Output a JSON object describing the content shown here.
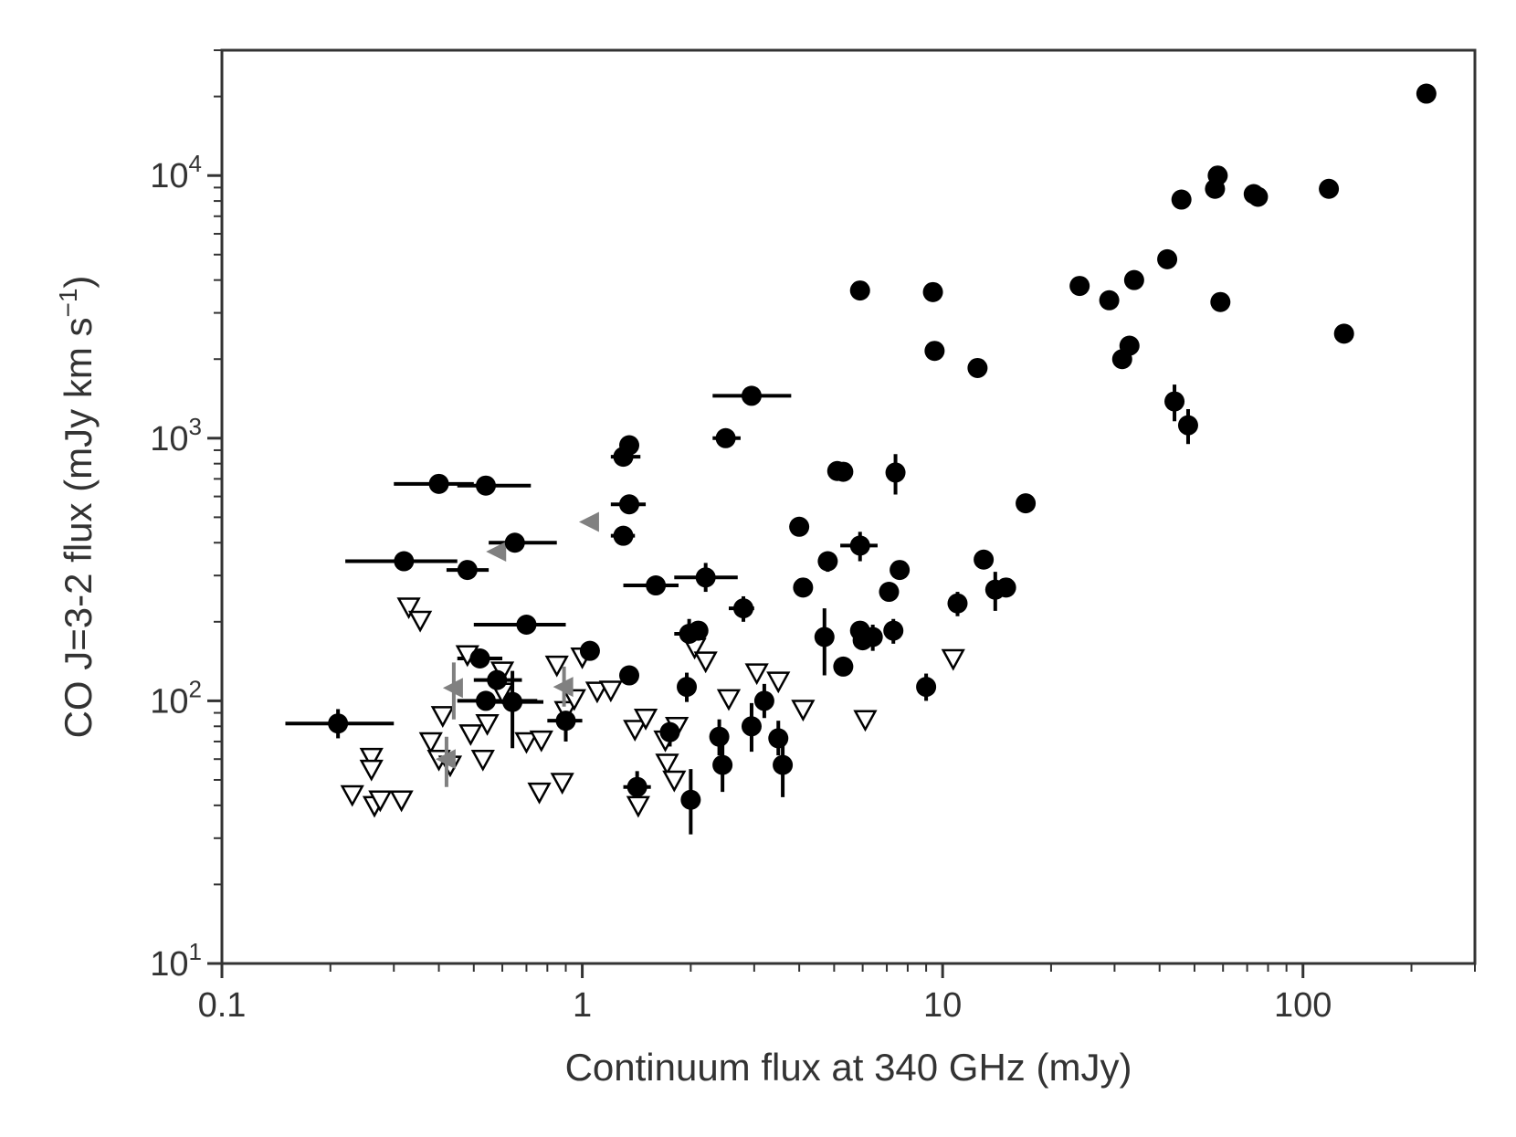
{
  "chart_data": {
    "type": "scatter",
    "title": "",
    "xlabel": "Continuum flux at 340 GHz  (mJy)",
    "ylabel": "CO J=3-2 flux  (mJy km s",
    "ylabel_sup": "−1",
    "ylabel_close": ")",
    "xscale": "log",
    "yscale": "log",
    "xlim": [
      0.1,
      300
    ],
    "ylim": [
      10,
      30000
    ],
    "x_ticks": [
      {
        "value": 0.1,
        "label": "0.1"
      },
      {
        "value": 1,
        "label": "1"
      },
      {
        "value": 10,
        "label": "10"
      },
      {
        "value": 100,
        "label": "100"
      }
    ],
    "y_ticks": [
      {
        "value": 10,
        "base": "10",
        "exp": "1"
      },
      {
        "value": 100,
        "base": "10",
        "exp": "2"
      },
      {
        "value": 1000,
        "base": "10",
        "exp": "3"
      },
      {
        "value": 10000,
        "base": "10",
        "exp": "4"
      }
    ],
    "grid": false,
    "colors": {
      "detection": "#000000",
      "upper_limit": "#000000",
      "continuum_limit": "#808080",
      "axes": "#333333"
    },
    "series": [
      {
        "marker": "filled-circle",
        "points": [
          {
            "x": 0.21,
            "y": 82,
            "xerr": [
              0.15,
              0.3
            ],
            "yerr": [
              72,
              93
            ]
          },
          {
            "x": 0.32,
            "y": 340,
            "xerr": [
              0.22,
              0.45
            ],
            "yerr": null
          },
          {
            "x": 0.4,
            "y": 670,
            "xerr": [
              0.3,
              0.5
            ],
            "yerr": null
          },
          {
            "x": 0.48,
            "y": 315,
            "xerr": [
              0.42,
              0.55
            ],
            "yerr": null
          },
          {
            "x": 0.54,
            "y": 660,
            "xerr": [
              0.45,
              0.72
            ],
            "yerr": null
          },
          {
            "x": 0.65,
            "y": 400,
            "xerr": [
              0.55,
              0.85
            ],
            "yerr": null
          },
          {
            "x": 0.7,
            "y": 195,
            "xerr": [
              0.5,
              0.9
            ],
            "yerr": null
          },
          {
            "x": 0.52,
            "y": 145,
            "xerr": [
              0.45,
              0.6
            ],
            "yerr": null
          },
          {
            "x": 0.58,
            "y": 120,
            "xerr": [
              0.5,
              0.68
            ],
            "yerr": null
          },
          {
            "x": 0.54,
            "y": 100,
            "xerr": [
              0.45,
              0.75
            ],
            "yerr": null
          },
          {
            "x": 0.64,
            "y": 99,
            "xerr": [
              0.55,
              0.78
            ],
            "yerr": [
              66,
              130
            ]
          },
          {
            "x": 0.9,
            "y": 84,
            "xerr": [
              0.8,
              1.0
            ],
            "yerr": [
              70,
              98
            ]
          },
          {
            "x": 1.05,
            "y": 155,
            "xerr": null,
            "yerr": null
          },
          {
            "x": 1.3,
            "y": 850,
            "xerr": [
              1.2,
              1.45
            ],
            "yerr": null
          },
          {
            "x": 1.35,
            "y": 940,
            "xerr": null,
            "yerr": null
          },
          {
            "x": 1.35,
            "y": 560,
            "xerr": [
              1.2,
              1.5
            ],
            "yerr": null
          },
          {
            "x": 1.3,
            "y": 425,
            "xerr": [
              1.2,
              1.4
            ],
            "yerr": null
          },
          {
            "x": 1.35,
            "y": 125,
            "xerr": [
              1.28,
              1.4
            ],
            "yerr": null
          },
          {
            "x": 1.6,
            "y": 275,
            "xerr": [
              1.3,
              1.85
            ],
            "yerr": null
          },
          {
            "x": 1.42,
            "y": 47,
            "xerr": [
              1.3,
              1.55
            ],
            "yerr": [
              41,
              54
            ]
          },
          {
            "x": 1.75,
            "y": 76,
            "xerr": [
              1.65,
              1.85
            ],
            "yerr": [
              67,
              86
            ]
          },
          {
            "x": 1.95,
            "y": 113,
            "xerr": null,
            "yerr": [
              99,
              128
            ]
          },
          {
            "x": 1.98,
            "y": 180,
            "xerr": [
              1.8,
              2.1
            ],
            "yerr": [
              162,
              205
            ]
          },
          {
            "x": 2.1,
            "y": 185,
            "xerr": [
              1.95,
              2.2
            ],
            "yerr": null
          },
          {
            "x": 2.2,
            "y": 295,
            "xerr": [
              1.8,
              2.7
            ],
            "yerr": [
              260,
              335
            ]
          },
          {
            "x": 2.0,
            "y": 42,
            "xerr": null,
            "yerr": [
              31,
              55
            ]
          },
          {
            "x": 2.4,
            "y": 73,
            "xerr": null,
            "yerr": [
              62,
              85
            ]
          },
          {
            "x": 2.45,
            "y": 57,
            "xerr": null,
            "yerr": [
              45,
              70
            ]
          },
          {
            "x": 2.5,
            "y": 1000,
            "xerr": [
              2.3,
              2.75
            ],
            "yerr": null
          },
          {
            "x": 2.8,
            "y": 225,
            "xerr": [
              2.55,
              3.0
            ],
            "yerr": [
              200,
              250
            ]
          },
          {
            "x": 2.95,
            "y": 1450,
            "xerr": [
              2.3,
              3.8
            ],
            "yerr": null
          },
          {
            "x": 2.95,
            "y": 80,
            "xerr": null,
            "yerr": [
              64,
              98
            ]
          },
          {
            "x": 3.2,
            "y": 100,
            "xerr": null,
            "yerr": [
              86,
              116
            ]
          },
          {
            "x": 3.5,
            "y": 72,
            "xerr": null,
            "yerr": [
              62,
              84
            ]
          },
          {
            "x": 3.6,
            "y": 57,
            "xerr": null,
            "yerr": [
              43,
              72
            ]
          },
          {
            "x": 4.0,
            "y": 460,
            "xerr": null,
            "yerr": null
          },
          {
            "x": 4.1,
            "y": 270,
            "xerr": null,
            "yerr": null
          },
          {
            "x": 4.8,
            "y": 340,
            "xerr": null,
            "yerr": [
              310,
              370
            ]
          },
          {
            "x": 4.7,
            "y": 175,
            "xerr": null,
            "yerr": [
              125,
              225
            ]
          },
          {
            "x": 5.1,
            "y": 750,
            "xerr": null,
            "yerr": null
          },
          {
            "x": 5.3,
            "y": 745,
            "xerr": null,
            "yerr": null
          },
          {
            "x": 5.3,
            "y": 135,
            "xerr": null,
            "yerr": null
          },
          {
            "x": 5.9,
            "y": 3650,
            "xerr": null,
            "yerr": null
          },
          {
            "x": 5.9,
            "y": 390,
            "xerr": [
              5.2,
              6.6
            ],
            "yerr": [
              340,
              440
            ]
          },
          {
            "x": 5.9,
            "y": 185,
            "xerr": null,
            "yerr": null
          },
          {
            "x": 6.0,
            "y": 170,
            "xerr": null,
            "yerr": null
          },
          {
            "x": 6.4,
            "y": 175,
            "xerr": null,
            "yerr": [
              155,
              195
            ]
          },
          {
            "x": 7.1,
            "y": 260,
            "xerr": null,
            "yerr": null
          },
          {
            "x": 7.3,
            "y": 185,
            "xerr": null,
            "yerr": [
              165,
              205
            ]
          },
          {
            "x": 7.4,
            "y": 740,
            "xerr": null,
            "yerr": [
              610,
              870
            ]
          },
          {
            "x": 7.6,
            "y": 315,
            "xerr": null,
            "yerr": null
          },
          {
            "x": 9.0,
            "y": 113,
            "xerr": null,
            "yerr": [
              100,
              127
            ]
          },
          {
            "x": 9.4,
            "y": 3600,
            "xerr": null,
            "yerr": null
          },
          {
            "x": 9.5,
            "y": 2150,
            "xerr": null,
            "yerr": null
          },
          {
            "x": 11,
            "y": 235,
            "xerr": null,
            "yerr": [
              210,
              260
            ]
          },
          {
            "x": 12.5,
            "y": 1850,
            "xerr": null,
            "yerr": null
          },
          {
            "x": 13,
            "y": 345,
            "xerr": null,
            "yerr": null
          },
          {
            "x": 14,
            "y": 265,
            "xerr": null,
            "yerr": [
              220,
              310
            ]
          },
          {
            "x": 15,
            "y": 270,
            "xerr": null,
            "yerr": null
          },
          {
            "x": 17,
            "y": 565,
            "xerr": null,
            "yerr": null
          },
          {
            "x": 24,
            "y": 3800,
            "xerr": null,
            "yerr": null
          },
          {
            "x": 29,
            "y": 3350,
            "xerr": null,
            "yerr": null
          },
          {
            "x": 31.5,
            "y": 2000,
            "xerr": null,
            "yerr": null
          },
          {
            "x": 33,
            "y": 2250,
            "xerr": null,
            "yerr": null
          },
          {
            "x": 34,
            "y": 4000,
            "xerr": null,
            "yerr": null
          },
          {
            "x": 42,
            "y": 4800,
            "xerr": null,
            "yerr": null
          },
          {
            "x": 44,
            "y": 1380,
            "xerr": null,
            "yerr": [
              1160,
              1600
            ]
          },
          {
            "x": 46,
            "y": 8100,
            "xerr": null,
            "yerr": null
          },
          {
            "x": 48,
            "y": 1120,
            "xerr": null,
            "yerr": [
              950,
              1290
            ]
          },
          {
            "x": 57,
            "y": 8900,
            "xerr": null,
            "yerr": null
          },
          {
            "x": 58,
            "y": 10000,
            "xerr": null,
            "yerr": null
          },
          {
            "x": 59,
            "y": 3300,
            "xerr": null,
            "yerr": null
          },
          {
            "x": 73,
            "y": 8500,
            "xerr": null,
            "yerr": null
          },
          {
            "x": 75,
            "y": 8300,
            "xerr": null,
            "yerr": null
          },
          {
            "x": 118,
            "y": 8900,
            "xerr": null,
            "yerr": null
          },
          {
            "x": 130,
            "y": 2500,
            "xerr": null,
            "yerr": null
          },
          {
            "x": 220,
            "y": 20500,
            "xerr": null,
            "yerr": null
          }
        ]
      },
      {
        "marker": "open-triangle-down",
        "points": [
          {
            "x": 0.23,
            "y": 44
          },
          {
            "x": 0.26,
            "y": 61
          },
          {
            "x": 0.26,
            "y": 55
          },
          {
            "x": 0.265,
            "y": 40
          },
          {
            "x": 0.275,
            "y": 42
          },
          {
            "x": 0.315,
            "y": 42
          },
          {
            "x": 0.33,
            "y": 228
          },
          {
            "x": 0.355,
            "y": 203
          },
          {
            "x": 0.38,
            "y": 70
          },
          {
            "x": 0.4,
            "y": 60
          },
          {
            "x": 0.41,
            "y": 88
          },
          {
            "x": 0.43,
            "y": 57
          },
          {
            "x": 0.48,
            "y": 150
          },
          {
            "x": 0.49,
            "y": 75
          },
          {
            "x": 0.53,
            "y": 60
          },
          {
            "x": 0.545,
            "y": 82
          },
          {
            "x": 0.6,
            "y": 130
          },
          {
            "x": 0.6,
            "y": 108
          },
          {
            "x": 0.7,
            "y": 70
          },
          {
            "x": 0.76,
            "y": 45
          },
          {
            "x": 0.77,
            "y": 71
          },
          {
            "x": 0.85,
            "y": 137
          },
          {
            "x": 0.88,
            "y": 49
          },
          {
            "x": 0.9,
            "y": 92
          },
          {
            "x": 0.95,
            "y": 102
          },
          {
            "x": 1.0,
            "y": 147
          },
          {
            "x": 1.1,
            "y": 109
          },
          {
            "x": 1.2,
            "y": 110
          },
          {
            "x": 1.4,
            "y": 78
          },
          {
            "x": 1.43,
            "y": 40
          },
          {
            "x": 1.5,
            "y": 86
          },
          {
            "x": 1.7,
            "y": 71
          },
          {
            "x": 1.72,
            "y": 58
          },
          {
            "x": 1.8,
            "y": 50
          },
          {
            "x": 1.83,
            "y": 80
          },
          {
            "x": 2.05,
            "y": 160
          },
          {
            "x": 2.2,
            "y": 142
          },
          {
            "x": 2.55,
            "y": 102
          },
          {
            "x": 3.05,
            "y": 128
          },
          {
            "x": 3.5,
            "y": 119
          },
          {
            "x": 4.1,
            "y": 93
          },
          {
            "x": 6.1,
            "y": 85
          },
          {
            "x": 10.7,
            "y": 145
          }
        ]
      },
      {
        "marker": "left-triangle",
        "points": [
          {
            "x": 1.05,
            "y": 480,
            "yerr": null
          },
          {
            "x": 0.58,
            "y": 370,
            "yerr": null
          },
          {
            "x": 0.44,
            "y": 112,
            "yerr": [
              85,
              140
            ]
          },
          {
            "x": 0.89,
            "y": 113,
            "yerr": [
              95,
              135
            ]
          },
          {
            "x": 0.42,
            "y": 60,
            "yerr": [
              47,
              73
            ]
          }
        ]
      }
    ]
  }
}
